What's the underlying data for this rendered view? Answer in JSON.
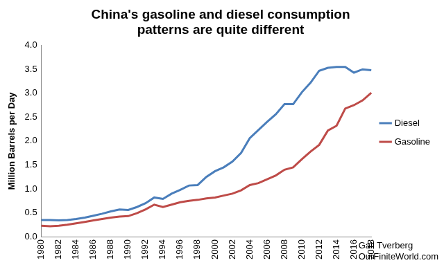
{
  "chart_data": {
    "type": "line",
    "title": [
      "China's gasoline and diesel consumption",
      "patterns are quite different"
    ],
    "y_label": "Million Barrels per Day",
    "annotations": [
      "Gail Tverberg",
      "OurFiniteWorld.com"
    ],
    "categories": [
      "1980",
      null,
      "1982",
      null,
      "1984",
      null,
      "1986",
      null,
      "1988",
      null,
      "1990",
      null,
      "1992",
      null,
      "1994",
      null,
      "1996",
      null,
      "1998",
      null,
      "2000",
      null,
      "2002",
      null,
      "2004",
      null,
      "2006",
      null,
      "2008",
      null,
      "2010",
      null,
      "2012",
      null,
      "2014",
      null,
      "2016",
      null,
      "2018"
    ],
    "series": [
      {
        "name": "Diesel",
        "color": "#4a7ebb",
        "values": [
          0.35,
          0.35,
          0.34,
          0.35,
          0.37,
          0.4,
          0.44,
          0.48,
          0.53,
          0.57,
          0.56,
          0.62,
          0.7,
          0.82,
          0.79,
          0.9,
          0.98,
          1.07,
          1.08,
          1.25,
          1.37,
          1.45,
          1.57,
          1.75,
          2.06,
          2.23,
          2.4,
          2.56,
          2.77,
          2.77,
          3.02,
          3.22,
          3.47,
          3.53,
          3.55,
          3.55,
          3.43,
          3.5,
          3.48
        ]
      },
      {
        "name": "Gasoline",
        "color": "#be4b48",
        "values": [
          0.23,
          0.22,
          0.23,
          0.25,
          0.28,
          0.31,
          0.34,
          0.37,
          0.4,
          0.42,
          0.43,
          0.49,
          0.57,
          0.67,
          0.62,
          0.67,
          0.72,
          0.75,
          0.77,
          0.8,
          0.82,
          0.86,
          0.9,
          0.97,
          1.08,
          1.12,
          1.2,
          1.28,
          1.4,
          1.45,
          1.62,
          1.78,
          1.92,
          2.22,
          2.32,
          2.68,
          2.75,
          2.85,
          3.01
        ]
      }
    ],
    "ylim": [
      0,
      4
    ],
    "yticks": [
      {
        "value": 0,
        "label": "0.0"
      },
      0.5,
      {
        "value": 1,
        "label": "1.0"
      },
      1.5,
      {
        "value": 2,
        "label": "2.0"
      },
      2.5,
      {
        "value": 3,
        "label": "3.0"
      },
      3.5,
      {
        "value": 4,
        "label": "4.0"
      }
    ],
    "grid": false,
    "legend": "right"
  }
}
